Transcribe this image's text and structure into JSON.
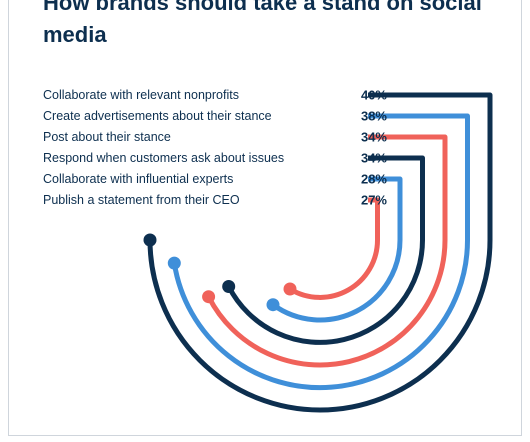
{
  "colors": {
    "navy": "#0d2f4f",
    "blue": "#3f8fd9",
    "coral": "#f0625a"
  },
  "chart_data": {
    "type": "bar",
    "title": "How brands should take a stand on social media",
    "categories": [
      "Collaborate with relevant nonprofits",
      "Create advertisements about their stance",
      "Post about their stance",
      "Respond when customers ask about issues",
      "Collaborate with influential experts",
      "Publish a statement from their CEO"
    ],
    "values": [
      40,
      38,
      34,
      34,
      28,
      27
    ],
    "value_labels": [
      "40%",
      "38%",
      "34%",
      "34%",
      "28%",
      "27%"
    ],
    "bar_colors": [
      "navy",
      "blue",
      "coral",
      "navy",
      "blue",
      "coral"
    ],
    "grid": false,
    "legend": "none"
  }
}
